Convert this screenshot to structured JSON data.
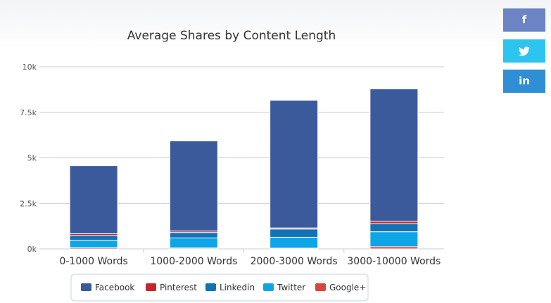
{
  "share": {
    "facebook_icon": "facebook-icon",
    "twitter_icon": "twitter-icon",
    "linkedin_icon": "linkedin-icon",
    "linkedin_glyph": "in",
    "facebook_glyph": "f",
    "colors": {
      "facebook": "#6d84c4",
      "twitter": "#2ec4f0",
      "linkedin": "#2f8ed4"
    }
  },
  "chart_data": {
    "type": "bar",
    "stacked": true,
    "title": "Average Shares by Content Length",
    "xlabel": "",
    "ylabel": "",
    "categories": [
      "0-1000 Words",
      "1000-2000 Words",
      "2000-3000 Words",
      "3000-10000 Words"
    ],
    "ylim": [
      0,
      10000
    ],
    "yticks": [
      0,
      2500,
      5000,
      7500,
      10000
    ],
    "ytick_labels": [
      "0k",
      "2.5k",
      "5k",
      "7.5k",
      "10k"
    ],
    "grid": true,
    "legend_position": "bottom",
    "series": [
      {
        "name": "Google+",
        "color": "#d9473a",
        "values": [
          60,
          50,
          40,
          120
        ]
      },
      {
        "name": "Twitter",
        "color": "#0ea5e6",
        "values": [
          400,
          550,
          600,
          820
        ]
      },
      {
        "name": "Linkedin",
        "color": "#1272b4",
        "values": [
          280,
          300,
          450,
          450
        ]
      },
      {
        "name": "Pinterest",
        "color": "#c5262e",
        "values": [
          90,
          80,
          60,
          130
        ]
      },
      {
        "name": "Facebook",
        "color": "#3b5a9b",
        "values": [
          3740,
          4950,
          7010,
          7270
        ]
      }
    ],
    "legend_order": [
      "Facebook",
      "Pinterest",
      "Linkedin",
      "Twitter",
      "Google+"
    ]
  }
}
